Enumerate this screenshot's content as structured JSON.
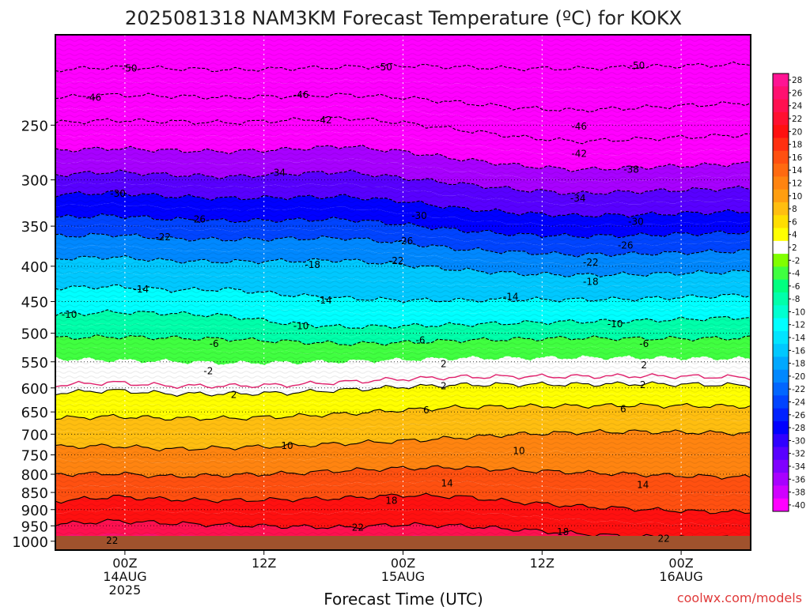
{
  "chart_data": {
    "type": "heatmap",
    "title": "2025081318 NAM3KM Forecast Temperature (ºC) for KOKX",
    "xlabel": "Forecast Time (UTC)",
    "ylabel": "",
    "credit": "coolwx.com/models",
    "x_unit": "forecast hour from 2025-08-13 18Z",
    "xlim": [
      0,
      60
    ],
    "y_scale": "log",
    "y_unit": "hPa",
    "ylim": [
      1030,
      185
    ],
    "y_ticks": [
      250,
      300,
      350,
      400,
      450,
      500,
      550,
      600,
      650,
      700,
      750,
      800,
      850,
      900,
      950,
      1000
    ],
    "x_ticks": [
      {
        "x": 6,
        "lines": [
          "00Z",
          "14AUG",
          "2025"
        ]
      },
      {
        "x": 18,
        "lines": [
          "12Z"
        ]
      },
      {
        "x": 30,
        "lines": [
          "00Z",
          "15AUG"
        ]
      },
      {
        "x": 42,
        "lines": [
          "12Z"
        ]
      },
      {
        "x": 54,
        "lines": [
          "00Z",
          "16AUG"
        ]
      }
    ],
    "colorbar": {
      "labels": [
        28,
        26,
        24,
        22,
        20,
        18,
        16,
        14,
        12,
        10,
        8,
        6,
        4,
        2,
        -2,
        -4,
        -6,
        -8,
        -10,
        -12,
        -14,
        -16,
        -18,
        -20,
        -22,
        -24,
        -26,
        -28,
        -30,
        -32,
        -34,
        -36,
        -38,
        -40
      ],
      "colors": [
        "#ff1493",
        "#ff1070",
        "#ff1050",
        "#ff1030",
        "#ff1010",
        "#ff3010",
        "#ff5010",
        "#ff6a10",
        "#ff8410",
        "#ff9e10",
        "#ffbe10",
        "#ffde00",
        "#ffff00",
        "#ffffff",
        "#80ff00",
        "#40ff40",
        "#00ff80",
        "#00ffaa",
        "#00ffd0",
        "#00ffff",
        "#00e4ff",
        "#00c8ff",
        "#00a8ff",
        "#0088ff",
        "#0066ff",
        "#0044ff",
        "#0022ff",
        "#0000ff",
        "#3000ff",
        "#5800ff",
        "#8000ff",
        "#a800ff",
        "#d000ff",
        "#ff00ff"
      ]
    },
    "ground_color": "#a0522d",
    "series": [
      {
        "level": -50,
        "p": [
          208,
          206,
          207,
          208,
          207,
          206,
          205,
          206,
          207,
          207,
          206,
          205,
          204
        ]
      },
      {
        "level": -46,
        "p": [
          228,
          226,
          227,
          228,
          227,
          226,
          228,
          232,
          236,
          238,
          236,
          234,
          232
        ]
      },
      {
        "level": -42,
        "p": [
          248,
          246,
          247,
          248,
          246,
          244,
          248,
          254,
          260,
          264,
          262,
          260,
          258
        ]
      },
      {
        "level": -38,
        "p": [
          272,
          270,
          272,
          273,
          271,
          268,
          273,
          280,
          286,
          290,
          288,
          286,
          284
        ]
      },
      {
        "level": -34,
        "p": [
          295,
          292,
          295,
          297,
          294,
          292,
          298,
          304,
          310,
          314,
          312,
          310,
          308
        ]
      },
      {
        "level": -30,
        "p": [
          315,
          313,
          317,
          319,
          318,
          317,
          322,
          330,
          335,
          338,
          337,
          335,
          333
        ]
      },
      {
        "level": -26,
        "p": [
          340,
          338,
          342,
          344,
          343,
          342,
          348,
          355,
          360,
          362,
          361,
          359,
          357
        ]
      },
      {
        "level": -22,
        "p": [
          362,
          360,
          365,
          366,
          365,
          364,
          370,
          378,
          382,
          385,
          384,
          382,
          380
        ]
      },
      {
        "level": -18,
        "p": [
          390,
          388,
          393,
          394,
          393,
          392,
          398,
          405,
          410,
          412,
          411,
          409,
          407
        ]
      },
      {
        "level": -14,
        "p": [
          430,
          428,
          433,
          432,
          440,
          445,
          448,
          448,
          447,
          447,
          446,
          443,
          440
        ]
      },
      {
        "level": -10,
        "p": [
          470,
          466,
          468,
          472,
          484,
          490,
          488,
          486,
          483,
          481,
          480,
          477,
          474
        ]
      },
      {
        "level": -6,
        "p": [
          508,
          506,
          508,
          510,
          514,
          518,
          516,
          512,
          510,
          508,
          509,
          509,
          508
        ]
      },
      {
        "level": -2,
        "p": [
          545,
          548,
          550,
          553,
          552,
          550,
          547,
          544,
          544,
          543,
          543,
          544,
          545
        ]
      },
      {
        "level": 2,
        "p": [
          610,
          605,
          612,
          612,
          610,
          604,
          598,
          594,
          593,
          593,
          592,
          593,
          595
        ]
      },
      {
        "level": 6,
        "p": [
          664,
          660,
          664,
          664,
          660,
          654,
          646,
          640,
          638,
          637,
          636,
          637,
          638
        ]
      },
      {
        "level": 10,
        "p": [
          730,
          728,
          736,
          732,
          728,
          722,
          716,
          708,
          700,
          696,
          694,
          696,
          698
        ]
      },
      {
        "level": 14,
        "p": [
          800,
          798,
          806,
          802,
          798,
          790,
          784,
          782,
          790,
          795,
          800,
          805,
          808
        ]
      },
      {
        "level": 18,
        "p": [
          875,
          862,
          870,
          873,
          870,
          866,
          858,
          862,
          878,
          890,
          898,
          905,
          908
        ]
      },
      {
        "level": 22,
        "p": [
          945,
          935,
          942,
          948,
          952,
          955,
          946,
          950,
          962,
          975,
          985,
          988,
          990
        ]
      }
    ],
    "contour_labels": [
      {
        "text": "-50",
        "x": 6.4,
        "p": 207
      },
      {
        "text": "-46",
        "x": 3.3,
        "p": 228
      },
      {
        "text": "-50",
        "x": 28.4,
        "p": 206
      },
      {
        "text": "-46",
        "x": 21.2,
        "p": 226
      },
      {
        "text": "-42",
        "x": 23.2,
        "p": 246
      },
      {
        "text": "-50",
        "x": 50.2,
        "p": 205
      },
      {
        "text": "-46",
        "x": 45.2,
        "p": 251
      },
      {
        "text": "-42",
        "x": 45.2,
        "p": 275
      },
      {
        "text": "-38",
        "x": 49.7,
        "p": 290
      },
      {
        "text": "-34",
        "x": 19.2,
        "p": 293
      },
      {
        "text": "-34",
        "x": 45.1,
        "p": 319
      },
      {
        "text": "-30",
        "x": 5.4,
        "p": 314
      },
      {
        "text": "-30",
        "x": 31.4,
        "p": 338
      },
      {
        "text": "-30",
        "x": 50.1,
        "p": 345
      },
      {
        "text": "-26",
        "x": 12.3,
        "p": 342
      },
      {
        "text": "-26",
        "x": 30.2,
        "p": 368
      },
      {
        "text": "-26",
        "x": 49.2,
        "p": 373
      },
      {
        "text": "-22",
        "x": 9.3,
        "p": 363
      },
      {
        "text": "-22",
        "x": 29.4,
        "p": 393
      },
      {
        "text": "-22",
        "x": 46.2,
        "p": 395
      },
      {
        "text": "-18",
        "x": 22.2,
        "p": 398
      },
      {
        "text": "-18",
        "x": 46.2,
        "p": 421
      },
      {
        "text": "-14",
        "x": 7.4,
        "p": 432
      },
      {
        "text": "-14",
        "x": 23.2,
        "p": 448
      },
      {
        "text": "-14",
        "x": 39.3,
        "p": 443
      },
      {
        "text": "-10",
        "x": 1.2,
        "p": 470
      },
      {
        "text": "-10",
        "x": 21.2,
        "p": 488
      },
      {
        "text": "-10",
        "x": 48.3,
        "p": 485
      },
      {
        "text": "-6",
        "x": 13.7,
        "p": 518
      },
      {
        "text": "-6",
        "x": 31.5,
        "p": 512
      },
      {
        "text": "-6",
        "x": 50.8,
        "p": 518
      },
      {
        "text": "-2",
        "x": 13.2,
        "p": 567
      },
      {
        "text": "2",
        "x": 33.5,
        "p": 554
      },
      {
        "text": "2",
        "x": 50.8,
        "p": 556
      },
      {
        "text": "2",
        "x": 15.4,
        "p": 614
      },
      {
        "text": "2",
        "x": 33.5,
        "p": 596
      },
      {
        "text": "2",
        "x": 50.7,
        "p": 594
      },
      {
        "text": "6",
        "x": 32.0,
        "p": 646
      },
      {
        "text": "6",
        "x": 49.0,
        "p": 644
      },
      {
        "text": "10",
        "x": 20.0,
        "p": 728
      },
      {
        "text": "10",
        "x": 40.0,
        "p": 740
      },
      {
        "text": "14",
        "x": 33.8,
        "p": 824
      },
      {
        "text": "14",
        "x": 50.7,
        "p": 829
      },
      {
        "text": "18",
        "x": 29.0,
        "p": 874
      },
      {
        "text": "18",
        "x": 43.8,
        "p": 970
      },
      {
        "text": "22",
        "x": 26.1,
        "p": 956
      },
      {
        "text": "22",
        "x": 52.5,
        "p": 991
      },
      {
        "text": "22",
        "x": 4.9,
        "p": 998
      }
    ]
  }
}
